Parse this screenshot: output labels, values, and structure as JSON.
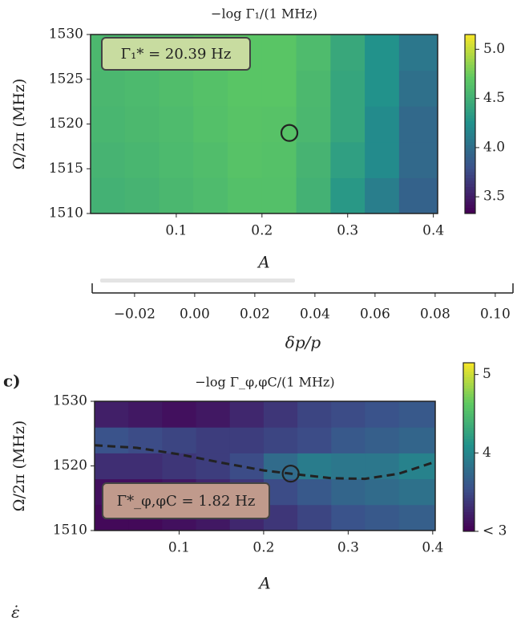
{
  "chart_data": [
    {
      "type": "heatmap",
      "title": "−log Γ₁/(1 MHz)",
      "xlabel": "A",
      "ylabel": "Ω/2π (MHz)",
      "annotation": "Γ₁* = 20.39 Hz",
      "x": [
        0.02,
        0.06,
        0.1,
        0.14,
        0.18,
        0.22,
        0.26,
        0.3,
        0.34,
        0.38
      ],
      "y": [
        1512,
        1516,
        1520,
        1524,
        1528
      ],
      "z": [
        [
          4.5,
          4.52,
          4.55,
          4.58,
          4.62,
          4.62,
          4.5,
          4.3,
          4.1,
          3.9
        ],
        [
          4.52,
          4.54,
          4.57,
          4.6,
          4.64,
          4.63,
          4.52,
          4.35,
          4.2,
          3.95
        ],
        [
          4.54,
          4.56,
          4.58,
          4.62,
          4.65,
          4.64,
          4.55,
          4.4,
          4.2,
          3.95
        ],
        [
          4.55,
          4.57,
          4.6,
          4.63,
          4.66,
          4.66,
          4.56,
          4.4,
          4.25,
          4.0
        ],
        [
          4.56,
          4.58,
          4.6,
          4.64,
          4.66,
          4.66,
          4.58,
          4.42,
          4.25,
          4.05
        ]
      ],
      "xlim": [
        0,
        0.405
      ],
      "xticks": [
        0.1,
        0.2,
        0.3,
        0.4
      ],
      "ylim": [
        1510,
        1530
      ],
      "yticks": [
        1510,
        1515,
        1520,
        1525,
        1530
      ],
      "clim": [
        3.33,
        5.15
      ],
      "cticks": [
        {
          "value": 3.5,
          "label": "3.5"
        },
        {
          "value": 4.0,
          "label": "4.0"
        },
        {
          "value": 4.5,
          "label": "4.5"
        },
        {
          "value": 5.0,
          "label": "5.0"
        }
      ],
      "marker": {
        "x": 0.232,
        "y": 1519
      }
    },
    {
      "type": "axis",
      "xlabel": "δp/p",
      "xlim": [
        -0.0341,
        0.1059
      ],
      "xticks": [
        {
          "value": -0.02,
          "label": "−0.02"
        },
        {
          "value": 0.0,
          "label": "0.00"
        },
        0.02,
        0.04,
        0.06,
        0.08,
        {
          "value": 0.1,
          "label": "0.10"
        }
      ]
    },
    {
      "type": "heatmap",
      "panel": "c)",
      "title": "−log Γ_φ,φC/(1 MHz)",
      "xlabel": "A",
      "ylabel": "Ω/2π (MHz)",
      "annotation": "Γ*_φ,φC = 1.82 Hz",
      "footnote": "ε̇",
      "x": [
        0.02,
        0.06,
        0.1,
        0.14,
        0.18,
        0.22,
        0.26,
        0.3,
        0.34,
        0.38
      ],
      "y": [
        1512,
        1516,
        1520,
        1524,
        1528
      ],
      "z": [
        [
          3.05,
          3.05,
          3.1,
          3.15,
          3.25,
          3.35,
          3.45,
          3.55,
          3.6,
          3.65
        ],
        [
          3.1,
          3.1,
          3.15,
          3.25,
          3.35,
          3.5,
          3.6,
          3.7,
          3.75,
          3.8
        ],
        [
          3.3,
          3.3,
          3.35,
          3.4,
          3.5,
          3.75,
          3.9,
          3.85,
          3.85,
          3.95
        ],
        [
          3.55,
          3.5,
          3.45,
          3.4,
          3.4,
          3.45,
          3.5,
          3.6,
          3.65,
          3.7
        ],
        [
          3.2,
          3.15,
          3.1,
          3.15,
          3.25,
          3.35,
          3.45,
          3.5,
          3.55,
          3.6
        ]
      ],
      "xlim": [
        0,
        0.403
      ],
      "xticks": [
        0.1,
        0.2,
        0.3,
        0.4
      ],
      "ylim": [
        1510,
        1530
      ],
      "yticks": [
        1510,
        1520,
        1530
      ],
      "clim": [
        3,
        5.15
      ],
      "cticks": [
        {
          "value": 3,
          "label": "< 3"
        },
        4,
        5
      ],
      "line": {
        "x": [
          0,
          0.05,
          0.1,
          0.15,
          0.2,
          0.232,
          0.28,
          0.32,
          0.36,
          0.4
        ],
        "y": [
          1523.2,
          1522.8,
          1521.8,
          1520.5,
          1519.3,
          1518.8,
          1518.1,
          1518,
          1518.8,
          1520.5
        ]
      },
      "marker": {
        "x": 0.232,
        "y": 1518.8
      }
    }
  ]
}
